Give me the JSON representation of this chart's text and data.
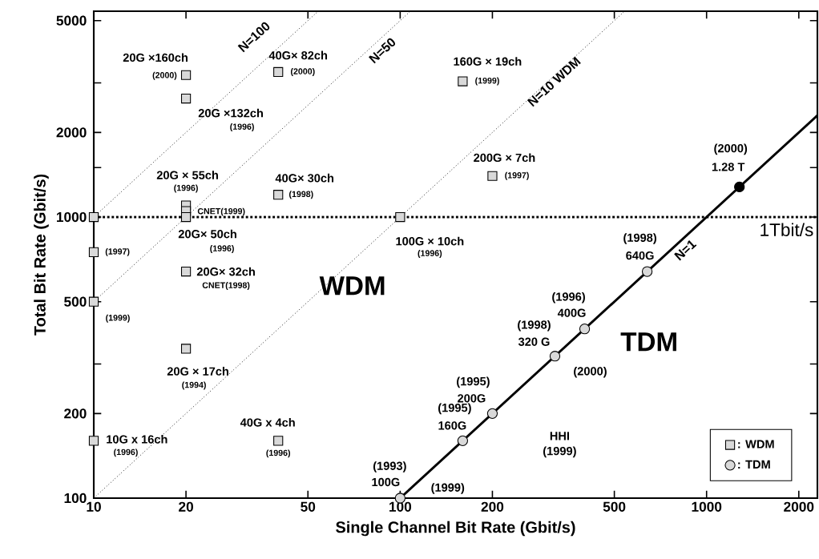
{
  "chart_data": {
    "type": "scatter",
    "xlabel": "Single Channel Bit Rate (Gbit/s)",
    "ylabel": "Total Bit Rate (Gbit/s)",
    "log": "xy",
    "xlim": [
      10,
      2300
    ],
    "ylim": [
      100,
      5400
    ],
    "xticks": [
      10,
      20,
      50,
      100,
      200,
      500,
      1000,
      2000
    ],
    "yticks": [
      100,
      200,
      {
        "value": 300,
        "label": null
      },
      500,
      1000,
      {
        "value": 1500,
        "label": null
      },
      2000,
      {
        "value": 3000,
        "label": null
      },
      5000
    ],
    "legend": "bottom right",
    "series": [
      {
        "name": ": WDM",
        "marker": "square",
        "color": "#d9d9d9",
        "x": [
          20,
          20,
          40,
          160,
          200,
          40,
          20,
          20,
          20,
          10,
          10,
          10,
          20,
          20,
          10,
          40,
          100
        ],
        "values": [
          3200,
          2640,
          3280,
          3040,
          1400,
          1200,
          1100,
          1050,
          1000,
          1000,
          750,
          500,
          640,
          340,
          160,
          160,
          1000
        ]
      },
      {
        "name": ": TDM",
        "marker": "circle",
        "color": "#d9d9d9",
        "colors": [
          "#d9d9d9",
          "#d9d9d9",
          "#d9d9d9",
          "#d9d9d9",
          "#d9d9d9",
          "#d9d9d9",
          "#000000"
        ],
        "x": [
          100,
          160,
          200,
          320,
          400,
          640,
          1280
        ],
        "values": [
          100,
          160,
          200,
          320,
          400,
          640,
          1280
        ]
      },
      {
        "name": "N=1",
        "type": "line",
        "color": "#000000",
        "line_style": "solid",
        "x": [
          100,
          2300
        ],
        "values": [
          100,
          2300
        ]
      },
      {
        "name": "N=10 WDM",
        "type": "line",
        "color": "#000000",
        "line_style": "dotted",
        "x": [
          10,
          540
        ],
        "values": [
          100,
          5400
        ]
      },
      {
        "name": "N=50",
        "type": "line",
        "color": "#000000",
        "line_style": "dotted",
        "x": [
          10,
          108
        ],
        "values": [
          500,
          5400
        ]
      },
      {
        "name": "N=100",
        "type": "line",
        "color": "#000000",
        "line_style": "dotted",
        "x": [
          10,
          54
        ],
        "values": [
          1000,
          5400
        ]
      }
    ],
    "ref_lines": [
      {
        "axis": "y",
        "value": 1000,
        "label": "1Tbit/s",
        "line_style": "dotted",
        "color": "#000000"
      }
    ],
    "annotations": [
      {
        "text": "20G ×160ch",
        "x": 20,
        "y": 3200
      },
      {
        "text": "(2000)",
        "x": 20,
        "y": 3200
      },
      {
        "text": "20G ×132ch",
        "x": 20,
        "y": 2640
      },
      "(1996)",
      {
        "text": "40G× 82ch",
        "x": 40,
        "y": 3280
      },
      {
        "text": "(2000)",
        "x": 40,
        "y": 3280
      },
      {
        "text": "160G × 19ch",
        "x": 160,
        "y": 3040
      },
      {
        "text": "(1999)",
        "x": 160,
        "y": 3040
      },
      {
        "text": "200G × 7ch",
        "x": 200,
        "y": 1400
      },
      {
        "text": "(1997)",
        "x": 200,
        "y": 1400
      },
      {
        "text": "40G× 30ch",
        "x": 40,
        "y": 1200
      },
      {
        "text": "(1998)",
        "x": 40,
        "y": 1200
      },
      {
        "text": "20G × 55ch",
        "x": 20,
        "y": 1100
      },
      {
        "text": "(1996)",
        "x": 20,
        "y": 1100
      },
      {
        "text": "CNET(1999)",
        "x": 20,
        "y": 1050
      },
      {
        "text": "20G× 50ch",
        "x": 20,
        "y": 1000
      },
      "(1996)",
      {
        "text": "(1997)",
        "x": 10,
        "y": 750
      },
      {
        "text": "(1999)",
        "x": 10,
        "y": 500
      },
      {
        "text": "20G× 32ch",
        "x": 20,
        "y": 640
      },
      {
        "text": "CNET(1998)",
        "x": 20,
        "y": 640
      },
      {
        "text": "20G × 17ch",
        "x": 20,
        "y": 340
      },
      "(1994)",
      {
        "text": "10G x 16ch",
        "x": 10,
        "y": 160
      },
      {
        "text": "(1996)",
        "x": 10,
        "y": 160
      },
      {
        "text": "40G x 4ch",
        "x": 40,
        "y": 160
      },
      {
        "text": "(1996)",
        "x": 40,
        "y": 160
      },
      {
        "text": "100G × 10ch",
        "x": 100,
        "y": 1000
      },
      "(1996)",
      {
        "text": "(1993)",
        "x": 100,
        "y": 100
      },
      {
        "text": "100G",
        "x": 100,
        "y": 100
      },
      {
        "text": "(1999)",
        "x": 100,
        "y": 100
      },
      {
        "text": "(1995)",
        "x": 160,
        "y": 160
      },
      {
        "text": "160G",
        "x": 160,
        "y": 160
      },
      "HHI",
      "(1999)",
      {
        "text": "(1995)",
        "x": 200,
        "y": 200
      },
      {
        "text": "200G",
        "x": 200,
        "y": 200
      },
      {
        "text": "(1998)",
        "x": 320,
        "y": 320
      },
      {
        "text": "320 G",
        "x": 320,
        "y": 320
      },
      {
        "text": "(2000)",
        "x": 320,
        "y": 320
      },
      {
        "text": "(1996)",
        "x": 400,
        "y": 400
      },
      {
        "text": "400G",
        "x": 400,
        "y": 400
      },
      {
        "text": "(1998)",
        "x": 640,
        "y": 640
      },
      {
        "text": "640G",
        "x": 640,
        "y": 640
      },
      {
        "text": "(2000)",
        "x": 1280,
        "y": 1280
      },
      {
        "text": "1.28 T",
        "x": 1280,
        "y": 1280
      },
      "WDM",
      "TDM"
    ]
  }
}
